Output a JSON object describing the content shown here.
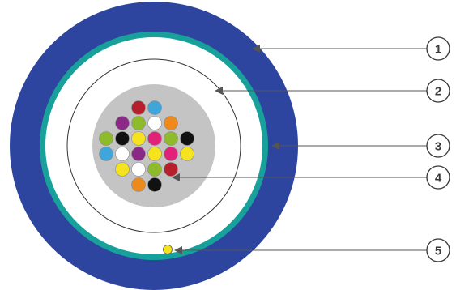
{
  "colors": {
    "outer_jacket": "#2d459e",
    "aramid_ring": "#17a19a",
    "buffer_tube": "#ffffff",
    "core_gel": "#bdbdbd",
    "leader_line": "#555555",
    "callout_border": "#333333",
    "ripcord": "#f5e11d"
  },
  "fibers": [
    "red",
    "cyan",
    "purple",
    "green",
    "white",
    "orange",
    "green",
    "black",
    "yellow",
    "pink",
    "green",
    "black",
    "cyan",
    "white",
    "purple",
    "yellow",
    "pink",
    "yellow",
    "yellow",
    "white",
    "green",
    "red",
    "orange",
    "black"
  ],
  "fiber_colors": {
    "red": "#b5202c",
    "cyan": "#3fa6dc",
    "purple": "#8a2a86",
    "green": "#8dbb2a",
    "white": "#ffffff",
    "orange": "#ef8a1a",
    "black": "#111111",
    "yellow": "#f6e31f",
    "pink": "#e0227a"
  },
  "callouts": [
    {
      "number": "1",
      "label_target": "outer-jacket"
    },
    {
      "number": "2",
      "label_target": "inner-layer"
    },
    {
      "number": "3",
      "label_target": "aramid-ring"
    },
    {
      "number": "4",
      "label_target": "fiber-bundle"
    },
    {
      "number": "5",
      "label_target": "ripcord"
    }
  ]
}
